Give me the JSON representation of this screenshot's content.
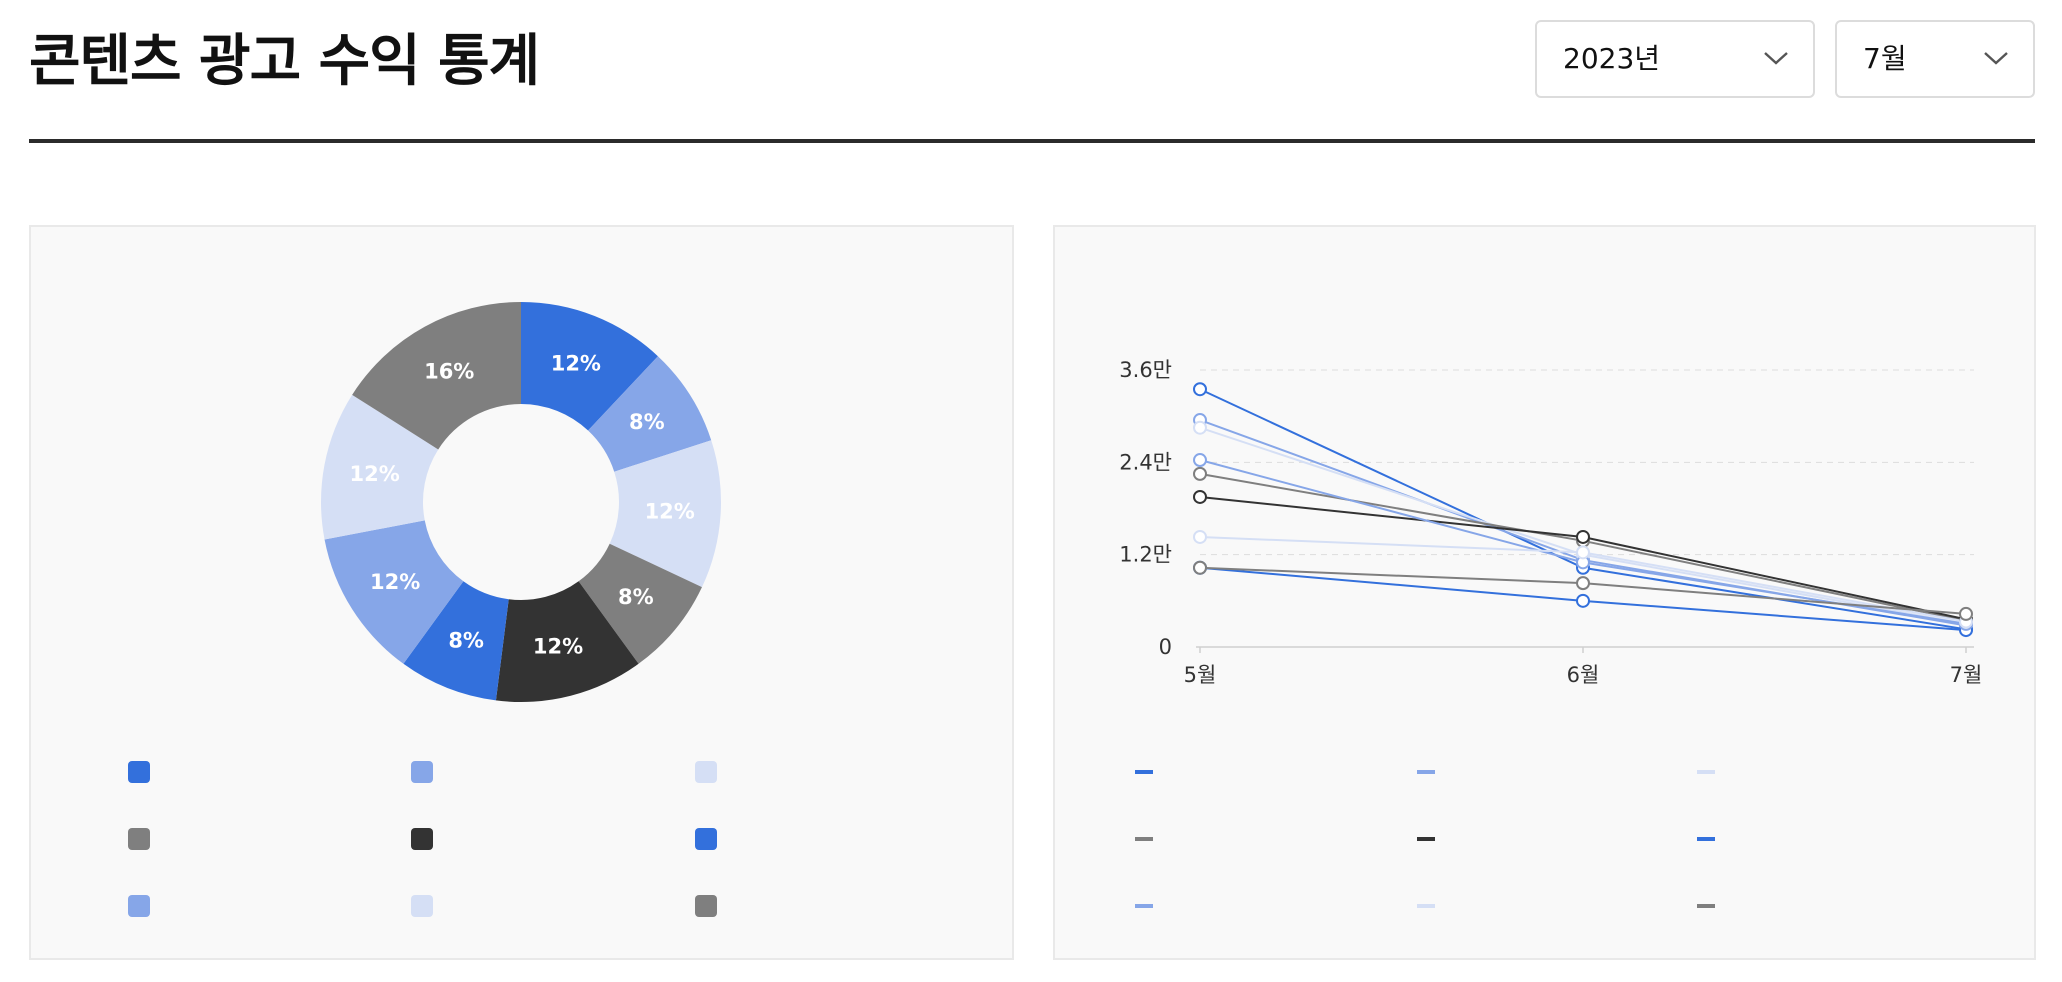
{
  "header": {
    "title": "콘텐츠 광고 수익 통계",
    "year_select": {
      "value": "2023년"
    },
    "month_select": {
      "value": "7월"
    }
  },
  "colors": {
    "blue": "#3370dc",
    "light_blue": "#86a6e8",
    "pale_blue": "#d5dff5",
    "gray": "#7f7f7f",
    "black": "#333333"
  },
  "chart_data": [
    {
      "type": "pie",
      "donut": true,
      "slices": [
        {
          "label": "12%",
          "value": 12,
          "color": "#3370dc"
        },
        {
          "label": "8%",
          "value": 8,
          "color": "#86a6e8"
        },
        {
          "label": "12%",
          "value": 12,
          "color": "#d5dff5"
        },
        {
          "label": "8%",
          "value": 8,
          "color": "#7f7f7f"
        },
        {
          "label": "12%",
          "value": 12,
          "color": "#333333"
        },
        {
          "label": "8%",
          "value": 8,
          "color": "#3370dc"
        },
        {
          "label": "12%",
          "value": 12,
          "color": "#86a6e8"
        },
        {
          "label": "12%",
          "value": 12,
          "color": "#d5dff5"
        },
        {
          "label": "16%",
          "value": 16,
          "color": "#7f7f7f"
        }
      ],
      "legend": [
        {
          "label": "",
          "color": "#3370dc"
        },
        {
          "label": "",
          "color": "#86a6e8"
        },
        {
          "label": "",
          "color": "#d5dff5"
        },
        {
          "label": "",
          "color": "#7f7f7f"
        },
        {
          "label": "",
          "color": "#333333"
        },
        {
          "label": "",
          "color": "#3370dc"
        },
        {
          "label": "",
          "color": "#86a6e8"
        },
        {
          "label": "",
          "color": "#d5dff5"
        },
        {
          "label": "",
          "color": "#7f7f7f"
        }
      ],
      "legend_position": "bottom"
    },
    {
      "type": "line",
      "x": [
        "5월",
        "6월",
        "7월"
      ],
      "y_ticks": [
        "0",
        "1.2만",
        "2.4만",
        "3.6만"
      ],
      "ylim": [
        0,
        36000
      ],
      "grid": true,
      "series": [
        {
          "color": "#3370dc",
          "values": [
            33500,
            10300,
            2300
          ]
        },
        {
          "color": "#86a6e8",
          "values": [
            29500,
            11300,
            2800
          ]
        },
        {
          "color": "#d5dff5",
          "values": [
            28500,
            12000,
            3000
          ]
        },
        {
          "color": "#7f7f7f",
          "values": [
            22500,
            13800,
            3400
          ]
        },
        {
          "color": "#333333",
          "values": [
            19500,
            14300,
            3600
          ]
        },
        {
          "color": "#3370dc",
          "values": [
            10300,
            6000,
            2200
          ]
        },
        {
          "color": "#86a6e8",
          "values": [
            24300,
            11000,
            3000
          ]
        },
        {
          "color": "#d5dff5",
          "values": [
            14300,
            12300,
            3300
          ]
        },
        {
          "color": "#7f7f7f",
          "values": [
            10300,
            8300,
            4300
          ]
        }
      ],
      "legend_position": "bottom"
    }
  ]
}
